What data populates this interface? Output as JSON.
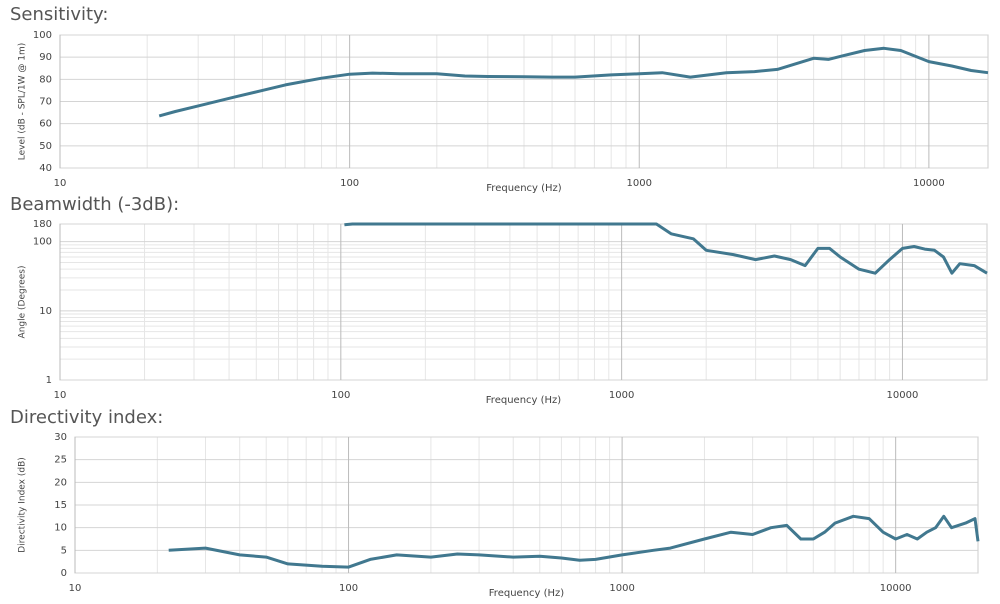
{
  "chart_data": [
    {
      "type": "line",
      "title": "Sensitivity:",
      "xlabel": "Frequency (Hz)",
      "ylabel": "Level (dB - SPL/1W @ 1m)",
      "xscale": "log",
      "yscale": "linear",
      "grid": true,
      "xlim": [
        10,
        16000
      ],
      "xticks": [
        10,
        100,
        1000,
        10000
      ],
      "ylim": [
        40,
        100
      ],
      "yticks": [
        40,
        50,
        60,
        70,
        80,
        90,
        100
      ],
      "x": [
        22,
        25,
        30,
        40,
        50,
        60,
        80,
        100,
        120,
        150,
        200,
        250,
        300,
        400,
        500,
        600,
        800,
        1000,
        1200,
        1500,
        2000,
        2500,
        3000,
        4000,
        4500,
        5000,
        6000,
        7000,
        8000,
        10000,
        12000,
        14000,
        16000
      ],
      "series": [
        {
          "color": "#41788f",
          "values": [
            63.5,
            65.5,
            68,
            72,
            75,
            77.5,
            80.5,
            82.3,
            82.8,
            82.5,
            82.5,
            81.5,
            81.3,
            81.2,
            81,
            81,
            82,
            82.5,
            83,
            81,
            83,
            83.5,
            84.5,
            89.5,
            89,
            90.5,
            93,
            94,
            93,
            88,
            86,
            84,
            83
          ]
        }
      ]
    },
    {
      "type": "line",
      "title": "Beamwidth (-3dB):",
      "xlabel": "Frequency (Hz)",
      "ylabel": "Angle (Degrees)",
      "xscale": "log",
      "yscale": "log",
      "grid": true,
      "xlim": [
        10,
        20000
      ],
      "xticks": [
        10,
        100,
        1000,
        10000
      ],
      "ylim": [
        1,
        180
      ],
      "yticks": [
        1,
        10,
        100,
        180
      ],
      "x": [
        103,
        110,
        200,
        500,
        1000,
        1330,
        1500,
        1800,
        2000,
        2500,
        3000,
        3500,
        4000,
        4500,
        5000,
        5500,
        6000,
        7000,
        8000,
        9000,
        10000,
        11000,
        12000,
        13000,
        14000,
        15000,
        16000,
        18000,
        20000
      ],
      "series": [
        {
          "color": "#41788f",
          "values": [
            175,
            180,
            180,
            180,
            180,
            180,
            130,
            110,
            75,
            65,
            55,
            62,
            55,
            45,
            80,
            80,
            60,
            40,
            35,
            55,
            80,
            85,
            78,
            75,
            60,
            35,
            48,
            45,
            35
          ]
        }
      ]
    },
    {
      "type": "line",
      "title": "Directivity index:",
      "xlabel": "Frequency (Hz)",
      "ylabel": "Directivity Index (dB)",
      "xscale": "log",
      "yscale": "linear",
      "grid": true,
      "xlim": [
        10,
        20000
      ],
      "xticks": [
        10,
        100,
        1000,
        10000
      ],
      "ylim": [
        0,
        30
      ],
      "yticks": [
        0,
        5,
        10,
        15,
        20,
        25,
        30
      ],
      "x": [
        22,
        30,
        40,
        50,
        60,
        80,
        100,
        120,
        150,
        200,
        250,
        300,
        400,
        500,
        600,
        700,
        800,
        1000,
        1300,
        1500,
        2000,
        2500,
        3000,
        3500,
        4000,
        4500,
        5000,
        5500,
        6000,
        7000,
        8000,
        9000,
        10000,
        11000,
        12000,
        13000,
        14000,
        15000,
        16000,
        18000,
        19500,
        20000
      ],
      "series": [
        {
          "color": "#41788f",
          "values": [
            5,
            5.5,
            4,
            3.5,
            2,
            1.5,
            1.3,
            3,
            4,
            3.5,
            4.2,
            4,
            3.5,
            3.7,
            3.3,
            2.8,
            3,
            4,
            5,
            5.5,
            7.5,
            9,
            8.5,
            10,
            10.5,
            7.5,
            7.5,
            9,
            11,
            12.5,
            12,
            9,
            7.5,
            8.5,
            7.5,
            9,
            10,
            12.5,
            10,
            11,
            12,
            7
          ]
        }
      ]
    }
  ]
}
